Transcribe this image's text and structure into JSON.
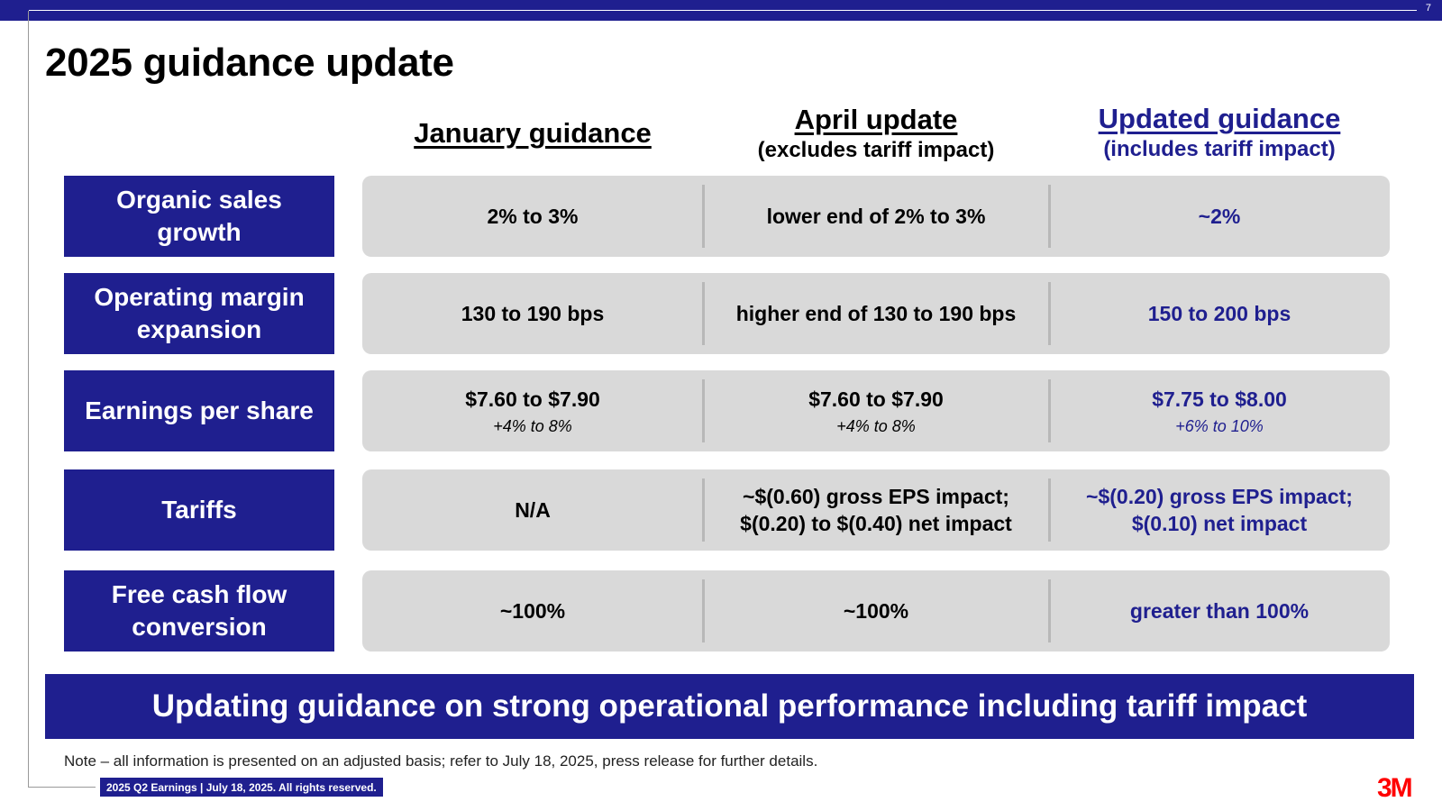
{
  "page_number": "7",
  "title": "2025 guidance update",
  "columns": [
    {
      "title": "January guidance",
      "subtitle": ""
    },
    {
      "title": "April update",
      "subtitle": "(excludes tariff impact)"
    },
    {
      "title": "Updated guidance",
      "subtitle": "(includes tariff impact)"
    }
  ],
  "rows": [
    {
      "label": "Organic sales growth",
      "cells": [
        {
          "value": "2% to 3%"
        },
        {
          "value": "lower end of 2% to 3%"
        },
        {
          "value": "~2%"
        }
      ]
    },
    {
      "label": "Operating margin expansion",
      "cells": [
        {
          "value": "130 to 190 bps"
        },
        {
          "value": "higher end of 130 to 190 bps"
        },
        {
          "value": "150 to 200 bps"
        }
      ]
    },
    {
      "label": "Earnings per share",
      "cells": [
        {
          "value": "$7.60 to $7.90",
          "sub": "+4% to 8%"
        },
        {
          "value": "$7.60 to $7.90",
          "sub": "+4% to 8%"
        },
        {
          "value": "$7.75 to $8.00",
          "sub": "+6% to 10%"
        }
      ]
    },
    {
      "label": "Tariffs",
      "cells": [
        {
          "value": "N/A"
        },
        {
          "value": "~$(0.60) gross EPS impact; $(0.20) to $(0.40) net impact"
        },
        {
          "value": "~$(0.20) gross EPS impact; $(0.10) net impact"
        }
      ]
    },
    {
      "label": "Free cash flow conversion",
      "cells": [
        {
          "value": "~100%"
        },
        {
          "value": "~100%"
        },
        {
          "value": "greater than 100%"
        }
      ]
    }
  ],
  "banner": "Updating guidance on strong operational performance including tariff impact",
  "note": "Note – all information is presented on an adjusted basis; refer to July 18, 2025, press release for further details.",
  "footer": "2025 Q2 Earnings | July 18, 2025. All rights reserved.",
  "logo": "3M",
  "colors": {
    "brand_navy": "#1f1f8f",
    "panel_gray": "#d9d9d9",
    "logo_red": "#ff0000"
  }
}
